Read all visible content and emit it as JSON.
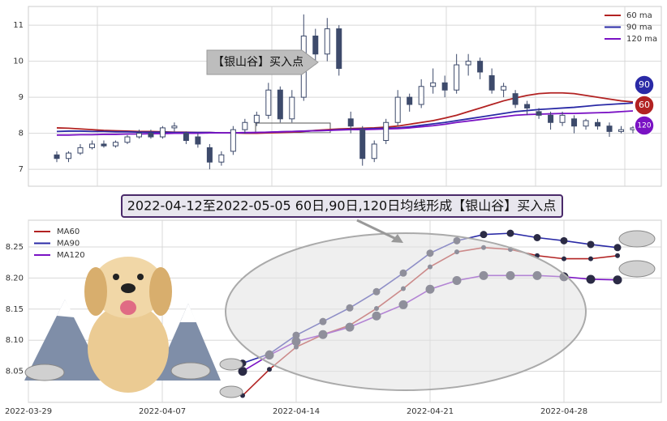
{
  "chart_data": [
    {
      "type": "candlestick",
      "annotation": "【银山谷】买入点",
      "ylim": [
        6.53,
        11.52
      ],
      "yticks": [
        7,
        8,
        9,
        10,
        11
      ],
      "grid": true,
      "legend": "upper right",
      "up_color": "#ffffff",
      "down_color": "#3d4a6b",
      "open": [
        7.4,
        7.3,
        7.45,
        7.6,
        7.7,
        7.65,
        7.75,
        7.9,
        8.0,
        7.9,
        8.15,
        8.0,
        7.9,
        7.6,
        7.2,
        7.5,
        8.1,
        8.3,
        8.5,
        9.2,
        8.4,
        9.0,
        10.7,
        10.2,
        10.9,
        8.4,
        8.1,
        7.3,
        7.8,
        8.3,
        9.0,
        8.8,
        9.3,
        9.4,
        9.2,
        9.9,
        10.0,
        9.6,
        9.2,
        9.1,
        8.8,
        8.6,
        8.5,
        8.3,
        8.4,
        8.2,
        8.3,
        8.2,
        8.05,
        8.1
      ],
      "high": [
        7.5,
        7.5,
        7.7,
        7.8,
        7.8,
        7.8,
        7.95,
        8.1,
        8.1,
        8.2,
        8.3,
        8.05,
        8.0,
        7.7,
        7.5,
        8.2,
        8.4,
        8.6,
        9.4,
        9.3,
        9.2,
        11.3,
        10.9,
        11.2,
        11.0,
        8.6,
        8.2,
        7.8,
        8.4,
        9.2,
        9.1,
        9.5,
        9.8,
        9.6,
        10.2,
        10.2,
        10.1,
        9.8,
        9.4,
        9.2,
        8.9,
        8.7,
        8.6,
        8.6,
        8.5,
        8.4,
        8.4,
        8.3,
        8.2,
        8.2
      ],
      "low": [
        7.2,
        7.2,
        7.4,
        7.55,
        7.6,
        7.6,
        7.7,
        7.85,
        7.85,
        7.85,
        8.05,
        7.7,
        7.6,
        7.0,
        7.1,
        7.4,
        8.0,
        8.2,
        8.4,
        8.3,
        8.3,
        8.9,
        9.9,
        10.0,
        9.6,
        8.0,
        7.1,
        7.2,
        7.7,
        8.2,
        8.6,
        8.7,
        9.1,
        9.0,
        9.1,
        9.6,
        9.5,
        9.1,
        9.0,
        8.7,
        8.5,
        8.4,
        8.1,
        8.2,
        8.0,
        8.1,
        8.1,
        7.9,
        8.0,
        8.0
      ],
      "close": [
        7.3,
        7.45,
        7.6,
        7.7,
        7.65,
        7.75,
        7.9,
        8.0,
        7.9,
        8.15,
        8.2,
        7.8,
        7.7,
        7.2,
        7.4,
        8.1,
        8.3,
        8.5,
        9.2,
        8.4,
        9.0,
        10.7,
        10.2,
        10.9,
        9.8,
        8.2,
        7.3,
        7.7,
        8.3,
        9.0,
        8.8,
        9.3,
        9.4,
        9.2,
        9.9,
        10.0,
        9.7,
        9.2,
        9.3,
        8.8,
        8.7,
        8.5,
        8.3,
        8.5,
        8.2,
        8.35,
        8.2,
        8.05,
        8.1,
        8.15
      ],
      "series": [
        {
          "name": "60 ma",
          "tag": "60",
          "color": "#b22222",
          "values": [
            8.15,
            8.14,
            8.12,
            8.1,
            8.08,
            8.07,
            8.06,
            8.05,
            8.05,
            8.04,
            8.03,
            8.03,
            8.02,
            8.02,
            8.01,
            8.01,
            8.0,
            8.0,
            8.01,
            8.02,
            8.03,
            8.05,
            8.08,
            8.1,
            8.12,
            8.13,
            8.14,
            8.15,
            8.17,
            8.2,
            8.25,
            8.3,
            8.35,
            8.42,
            8.5,
            8.6,
            8.7,
            8.8,
            8.9,
            8.98,
            9.05,
            9.1,
            9.12,
            9.12,
            9.1,
            9.05,
            9.0,
            8.95,
            8.9,
            8.87
          ]
        },
        {
          "name": "90 ma",
          "tag": "90",
          "color": "#2a2aa6",
          "values": [
            8.05,
            8.06,
            8.06,
            8.05,
            8.05,
            8.04,
            8.04,
            8.03,
            8.03,
            8.03,
            8.02,
            8.02,
            8.02,
            8.02,
            8.01,
            8.01,
            8.01,
            8.02,
            8.03,
            8.04,
            8.05,
            8.06,
            8.07,
            8.08,
            8.1,
            8.11,
            8.12,
            8.13,
            8.14,
            8.15,
            8.18,
            8.22,
            8.26,
            8.3,
            8.35,
            8.4,
            8.45,
            8.5,
            8.55,
            8.6,
            8.63,
            8.66,
            8.68,
            8.7,
            8.72,
            8.75,
            8.78,
            8.8,
            8.82,
            8.84
          ]
        },
        {
          "name": "120 ma",
          "tag": "120",
          "color": "#7a12c4",
          "values": [
            7.95,
            7.95,
            7.96,
            7.96,
            7.97,
            7.97,
            7.98,
            7.98,
            7.99,
            7.99,
            8.0,
            8.0,
            8.0,
            8.01,
            8.01,
            8.01,
            8.02,
            8.02,
            8.03,
            8.04,
            8.05,
            8.06,
            8.07,
            8.08,
            8.09,
            8.1,
            8.1,
            8.11,
            8.12,
            8.13,
            8.15,
            8.18,
            8.21,
            8.25,
            8.3,
            8.34,
            8.38,
            8.42,
            8.46,
            8.5,
            8.52,
            8.53,
            8.54,
            8.55,
            8.55,
            8.56,
            8.57,
            8.58,
            8.6,
            8.62
          ]
        }
      ]
    },
    {
      "type": "line",
      "title": "2022-04-12至2022-05-05 60日,90日,120日均线形成【银山谷】买入点",
      "categories": [
        "2022-03-29",
        null,
        null,
        null,
        null,
        "2022-04-07",
        null,
        null,
        null,
        null,
        "2022-04-14",
        null,
        null,
        null,
        null,
        "2022-04-21",
        null,
        null,
        null,
        null,
        "2022-04-28",
        null,
        null
      ],
      "ylim": [
        8.0,
        8.293
      ],
      "yticks": [
        8.05,
        {
          "value": 8.1,
          "label": "8.10"
        },
        8.15,
        {
          "value": 8.2,
          "label": "8.20"
        },
        8.25
      ],
      "grid": true,
      "legend": "upper left",
      "series": [
        {
          "name": "MA60",
          "color": "#b22222",
          "values": [
            null,
            null,
            null,
            null,
            null,
            null,
            null,
            null,
            8.011,
            8.053,
            8.089,
            8.109,
            8.124,
            8.151,
            8.183,
            8.218,
            8.242,
            8.249,
            8.246,
            8.236,
            8.231,
            8.231,
            8.236
          ]
        },
        {
          "name": "MA90",
          "color": "#2a2aa6",
          "values": [
            null,
            null,
            null,
            null,
            null,
            null,
            null,
            null,
            8.063,
            8.078,
            8.108,
            8.13,
            8.152,
            8.178,
            8.208,
            8.24,
            8.26,
            8.27,
            8.272,
            8.265,
            8.26,
            8.254,
            8.249
          ]
        },
        {
          "name": "MA120",
          "color": "#7a12c4",
          "values": [
            null,
            null,
            null,
            null,
            null,
            null,
            null,
            null,
            8.05,
            8.076,
            8.098,
            8.109,
            8.121,
            8.139,
            8.157,
            8.182,
            8.196,
            8.204,
            8.204,
            8.204,
            8.202,
            8.198,
            8.197
          ]
        }
      ]
    }
  ]
}
